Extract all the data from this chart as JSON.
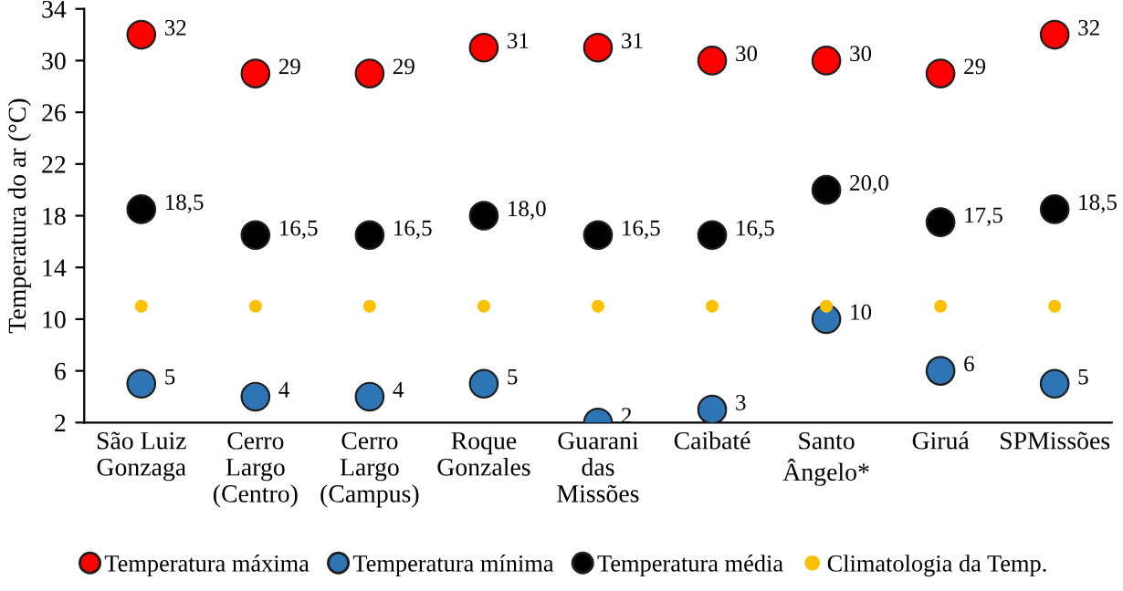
{
  "chart_data": {
    "type": "scatter",
    "ylabel": "Temperatura do ar (°C)",
    "categories": [
      "São Luiz\nGonzaga",
      "Cerro\nLargo\n(Centro)",
      "Cerro\nLargo\n(Campus)",
      "Roque\nGonzales",
      "Guarani\ndas\nMissões",
      "Caibaté",
      "Santo\nÂngelo*",
      "Giruá",
      "SPMissões"
    ],
    "series": [
      {
        "name": "Temperatura máxima",
        "color": "#ff0000",
        "values": [
          32,
          29,
          29,
          31,
          31,
          30,
          30,
          29,
          32
        ],
        "value_labels": [
          "32",
          "29",
          "29",
          "31",
          "31",
          "30",
          "30",
          "29",
          "32"
        ]
      },
      {
        "name": "Temperatura mínima",
        "color": "#2e75b6",
        "values": [
          5,
          4,
          4,
          5,
          2,
          3,
          10,
          6,
          5
        ],
        "value_labels": [
          "5",
          "4",
          "4",
          "5",
          "2",
          "3",
          "10",
          "6",
          "5"
        ]
      },
      {
        "name": "Temperatura média",
        "color": "#000000",
        "values": [
          18.5,
          16.5,
          16.5,
          18.0,
          16.5,
          16.5,
          20.0,
          17.5,
          18.5
        ],
        "value_labels": [
          "18,5",
          "16,5",
          "16,5",
          "18,0",
          "16,5",
          "16,5",
          "20,0",
          "17,5",
          "18,5"
        ]
      },
      {
        "name": "Climatologia da Temp.",
        "color": "#ffc000",
        "values": [
          11,
          11,
          11,
          11,
          11,
          11,
          11,
          11,
          11
        ]
      }
    ],
    "ylim": [
      2,
      34
    ],
    "yticks": [
      2,
      6,
      10,
      14,
      18,
      22,
      26,
      30,
      34
    ],
    "grid": false,
    "legend": "bottom",
    "marker": "circle"
  }
}
